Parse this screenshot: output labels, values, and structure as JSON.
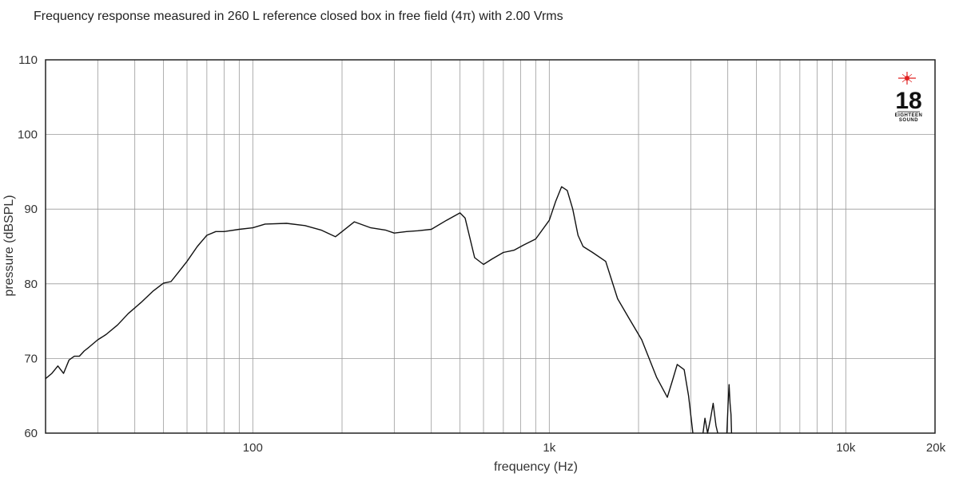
{
  "chart_data": {
    "type": "line",
    "title": "Frequency response measured in 260 L reference closed box in free field (4π) with 2.00 Vrms",
    "xlabel": "frequency (Hz)",
    "ylabel": "pressure (dBSPL)",
    "xscale": "log",
    "xlim": [
      20,
      20000
    ],
    "ylim": [
      60,
      110
    ],
    "xticks": [
      {
        "value": 100,
        "label": "100"
      },
      {
        "value": 1000,
        "label": "1k"
      },
      {
        "value": 10000,
        "label": "10k"
      },
      {
        "value": 20000,
        "label": "20k"
      }
    ],
    "yticks": [
      {
        "value": 60,
        "label": "60"
      },
      {
        "value": 70,
        "label": "70"
      },
      {
        "value": 80,
        "label": "80"
      },
      {
        "value": 90,
        "label": "90"
      },
      {
        "value": 100,
        "label": "100"
      },
      {
        "value": 110,
        "label": "110"
      }
    ],
    "grid": true,
    "logo": "18 SOUND",
    "series": [
      {
        "x": [
          20,
          21,
          22,
          23,
          24,
          25,
          26,
          27,
          28,
          30,
          32,
          35,
          38,
          42,
          46,
          50,
          53,
          56,
          60,
          65,
          70,
          75,
          80,
          90,
          100,
          110,
          130,
          150,
          170,
          190,
          200,
          220,
          250,
          280,
          300,
          330,
          360,
          400,
          450,
          500,
          520,
          560,
          600,
          640,
          700,
          760,
          820,
          900,
          1000,
          1050,
          1100,
          1150,
          1200,
          1250,
          1300,
          1400,
          1550,
          1700,
          1850,
          2050,
          2300,
          2500,
          2600,
          2700,
          2850,
          2950,
          3050
        ],
        "y": [
          67.3,
          68.0,
          69.0,
          68.0,
          69.8,
          70.3,
          70.3,
          71.0,
          71.5,
          72.5,
          73.2,
          74.5,
          76.0,
          77.5,
          79.0,
          80.1,
          80.3,
          81.5,
          83.0,
          85.0,
          86.5,
          87.0,
          87.0,
          87.3,
          87.5,
          88.0,
          88.1,
          87.8,
          87.2,
          86.3,
          87.0,
          88.3,
          87.5,
          87.2,
          86.8,
          87.0,
          87.1,
          87.3,
          88.5,
          89.5,
          88.8,
          83.5,
          82.6,
          83.3,
          84.2,
          84.5,
          85.2,
          86.0,
          88.5,
          91.0,
          93.0,
          92.5,
          90.0,
          86.5,
          85.0,
          84.2,
          83.0,
          78.0,
          75.5,
          72.5,
          67.5,
          64.8,
          67.0,
          69.2,
          68.5,
          65.0,
          60.0
        ]
      },
      {
        "x": [
          3300,
          3350,
          3420,
          3500,
          3570,
          3650,
          3700
        ],
        "y": [
          60.0,
          62.0,
          60.0,
          62.0,
          64.0,
          61.0,
          60.0
        ]
      },
      {
        "x": [
          3970,
          4010,
          4040,
          4070,
          4100,
          4120
        ],
        "y": [
          60.0,
          64.0,
          66.5,
          64.0,
          62.5,
          60.0
        ]
      }
    ]
  }
}
